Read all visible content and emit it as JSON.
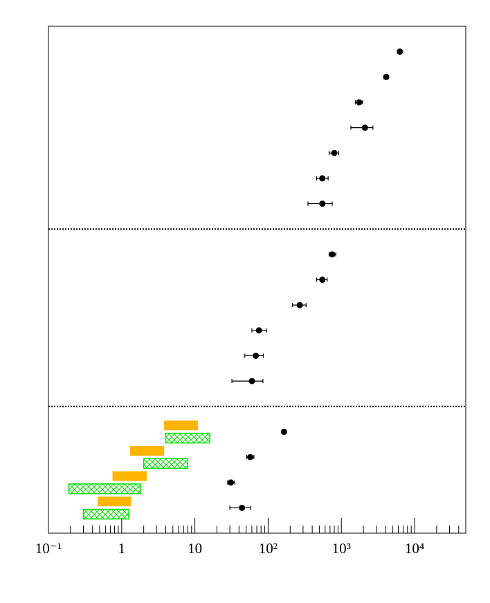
{
  "chart_data": {
    "type": "scatter",
    "xscale": "log",
    "xlim": [
      0.1,
      50000
    ],
    "xticks": [
      {
        "value": 0.1,
        "label": "10⁻¹"
      },
      1,
      10,
      {
        "value": 100,
        "label": "10²"
      },
      {
        "value": 1000,
        "label": "10³"
      },
      {
        "value": 10000,
        "label": "10⁴"
      }
    ],
    "xticks_minor": [
      0.2,
      0.3,
      0.4,
      0.5,
      0.6,
      0.7,
      0.8,
      0.9,
      2,
      3,
      4,
      5,
      6,
      7,
      8,
      9,
      20,
      30,
      40,
      50,
      60,
      70,
      80,
      90,
      200,
      300,
      400,
      500,
      600,
      700,
      800,
      900,
      2000,
      3000,
      4000,
      5000,
      6000,
      7000,
      8000,
      9000,
      20000,
      30000,
      40000
    ],
    "ylim": [
      0,
      20
    ],
    "separators": [
      12,
      5
    ],
    "points": {
      "color": "#000000",
      "y": [
        19,
        18,
        17,
        16,
        15,
        14,
        13,
        11,
        10,
        9,
        8,
        7,
        6,
        4,
        3,
        2,
        1
      ],
      "x": [
        6300,
        4100,
        1750,
        2100,
        800,
        550,
        550,
        750,
        550,
        270,
        75,
        68,
        60,
        165,
        57,
        31,
        44
      ],
      "xlow": [
        5900,
        3800,
        1550,
        1350,
        680,
        460,
        350,
        680,
        460,
        215,
        60,
        48,
        32,
        165,
        51,
        28,
        30
      ],
      "xhigh": [
        6700,
        4400,
        1950,
        2700,
        920,
        660,
        750,
        840,
        640,
        330,
        95,
        86,
        85,
        165,
        64,
        35,
        57
      ]
    },
    "bars": [
      {
        "color": "#ffb400",
        "hatch": false,
        "y": [
          4.25,
          3.25,
          2.25,
          1.25
        ],
        "xlow": [
          3.8,
          1.3,
          0.75,
          0.47
        ],
        "xhigh": [
          11,
          3.8,
          2.2,
          1.35
        ]
      },
      {
        "color": "#00e000",
        "hatch": true,
        "y": [
          3.75,
          2.75,
          1.75,
          0.75
        ],
        "xlow": [
          4,
          2,
          0.19,
          0.3
        ],
        "xhigh": [
          16,
          8,
          1.8,
          1.25
        ]
      }
    ]
  }
}
